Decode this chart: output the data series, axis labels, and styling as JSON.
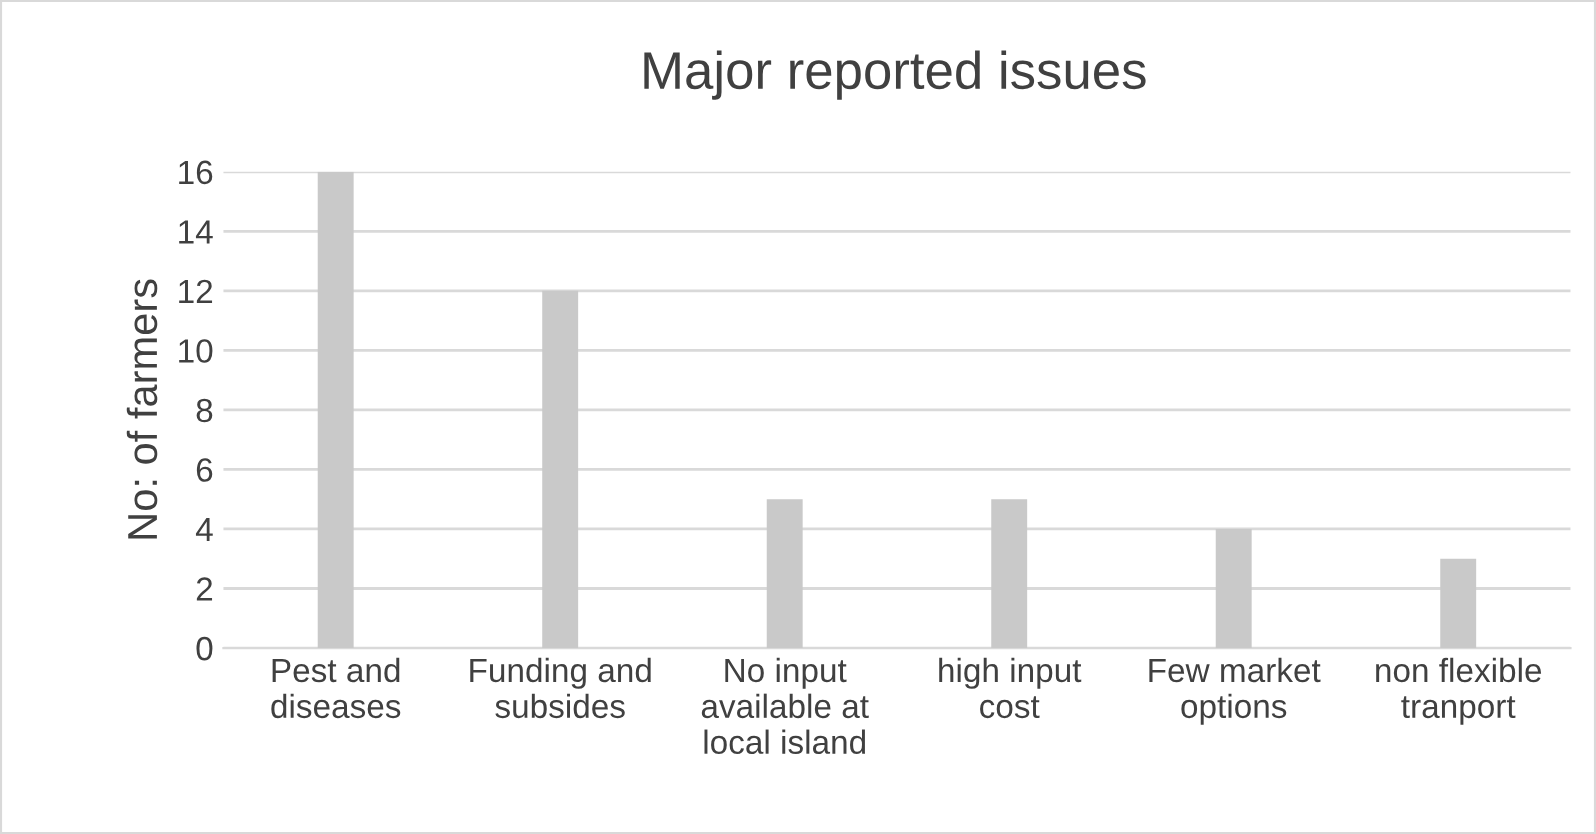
{
  "chart_data": {
    "type": "bar",
    "title": "Major reported issues",
    "ylabel": "No: of farmers",
    "categories": [
      "Pest and\ndiseases",
      "Funding and\nsubsides",
      "No input\navailable at\nlocal island",
      "high input\ncost",
      "Few market\noptions",
      "non flexible\ntranport"
    ],
    "values": [
      16,
      12,
      5,
      5,
      4,
      3
    ],
    "color": "#c9c9c9",
    "ylim": [
      0,
      16
    ],
    "yticks": [
      0,
      2,
      4,
      6,
      8,
      10,
      12,
      14,
      16
    ],
    "grid": "y",
    "legend": false
  }
}
